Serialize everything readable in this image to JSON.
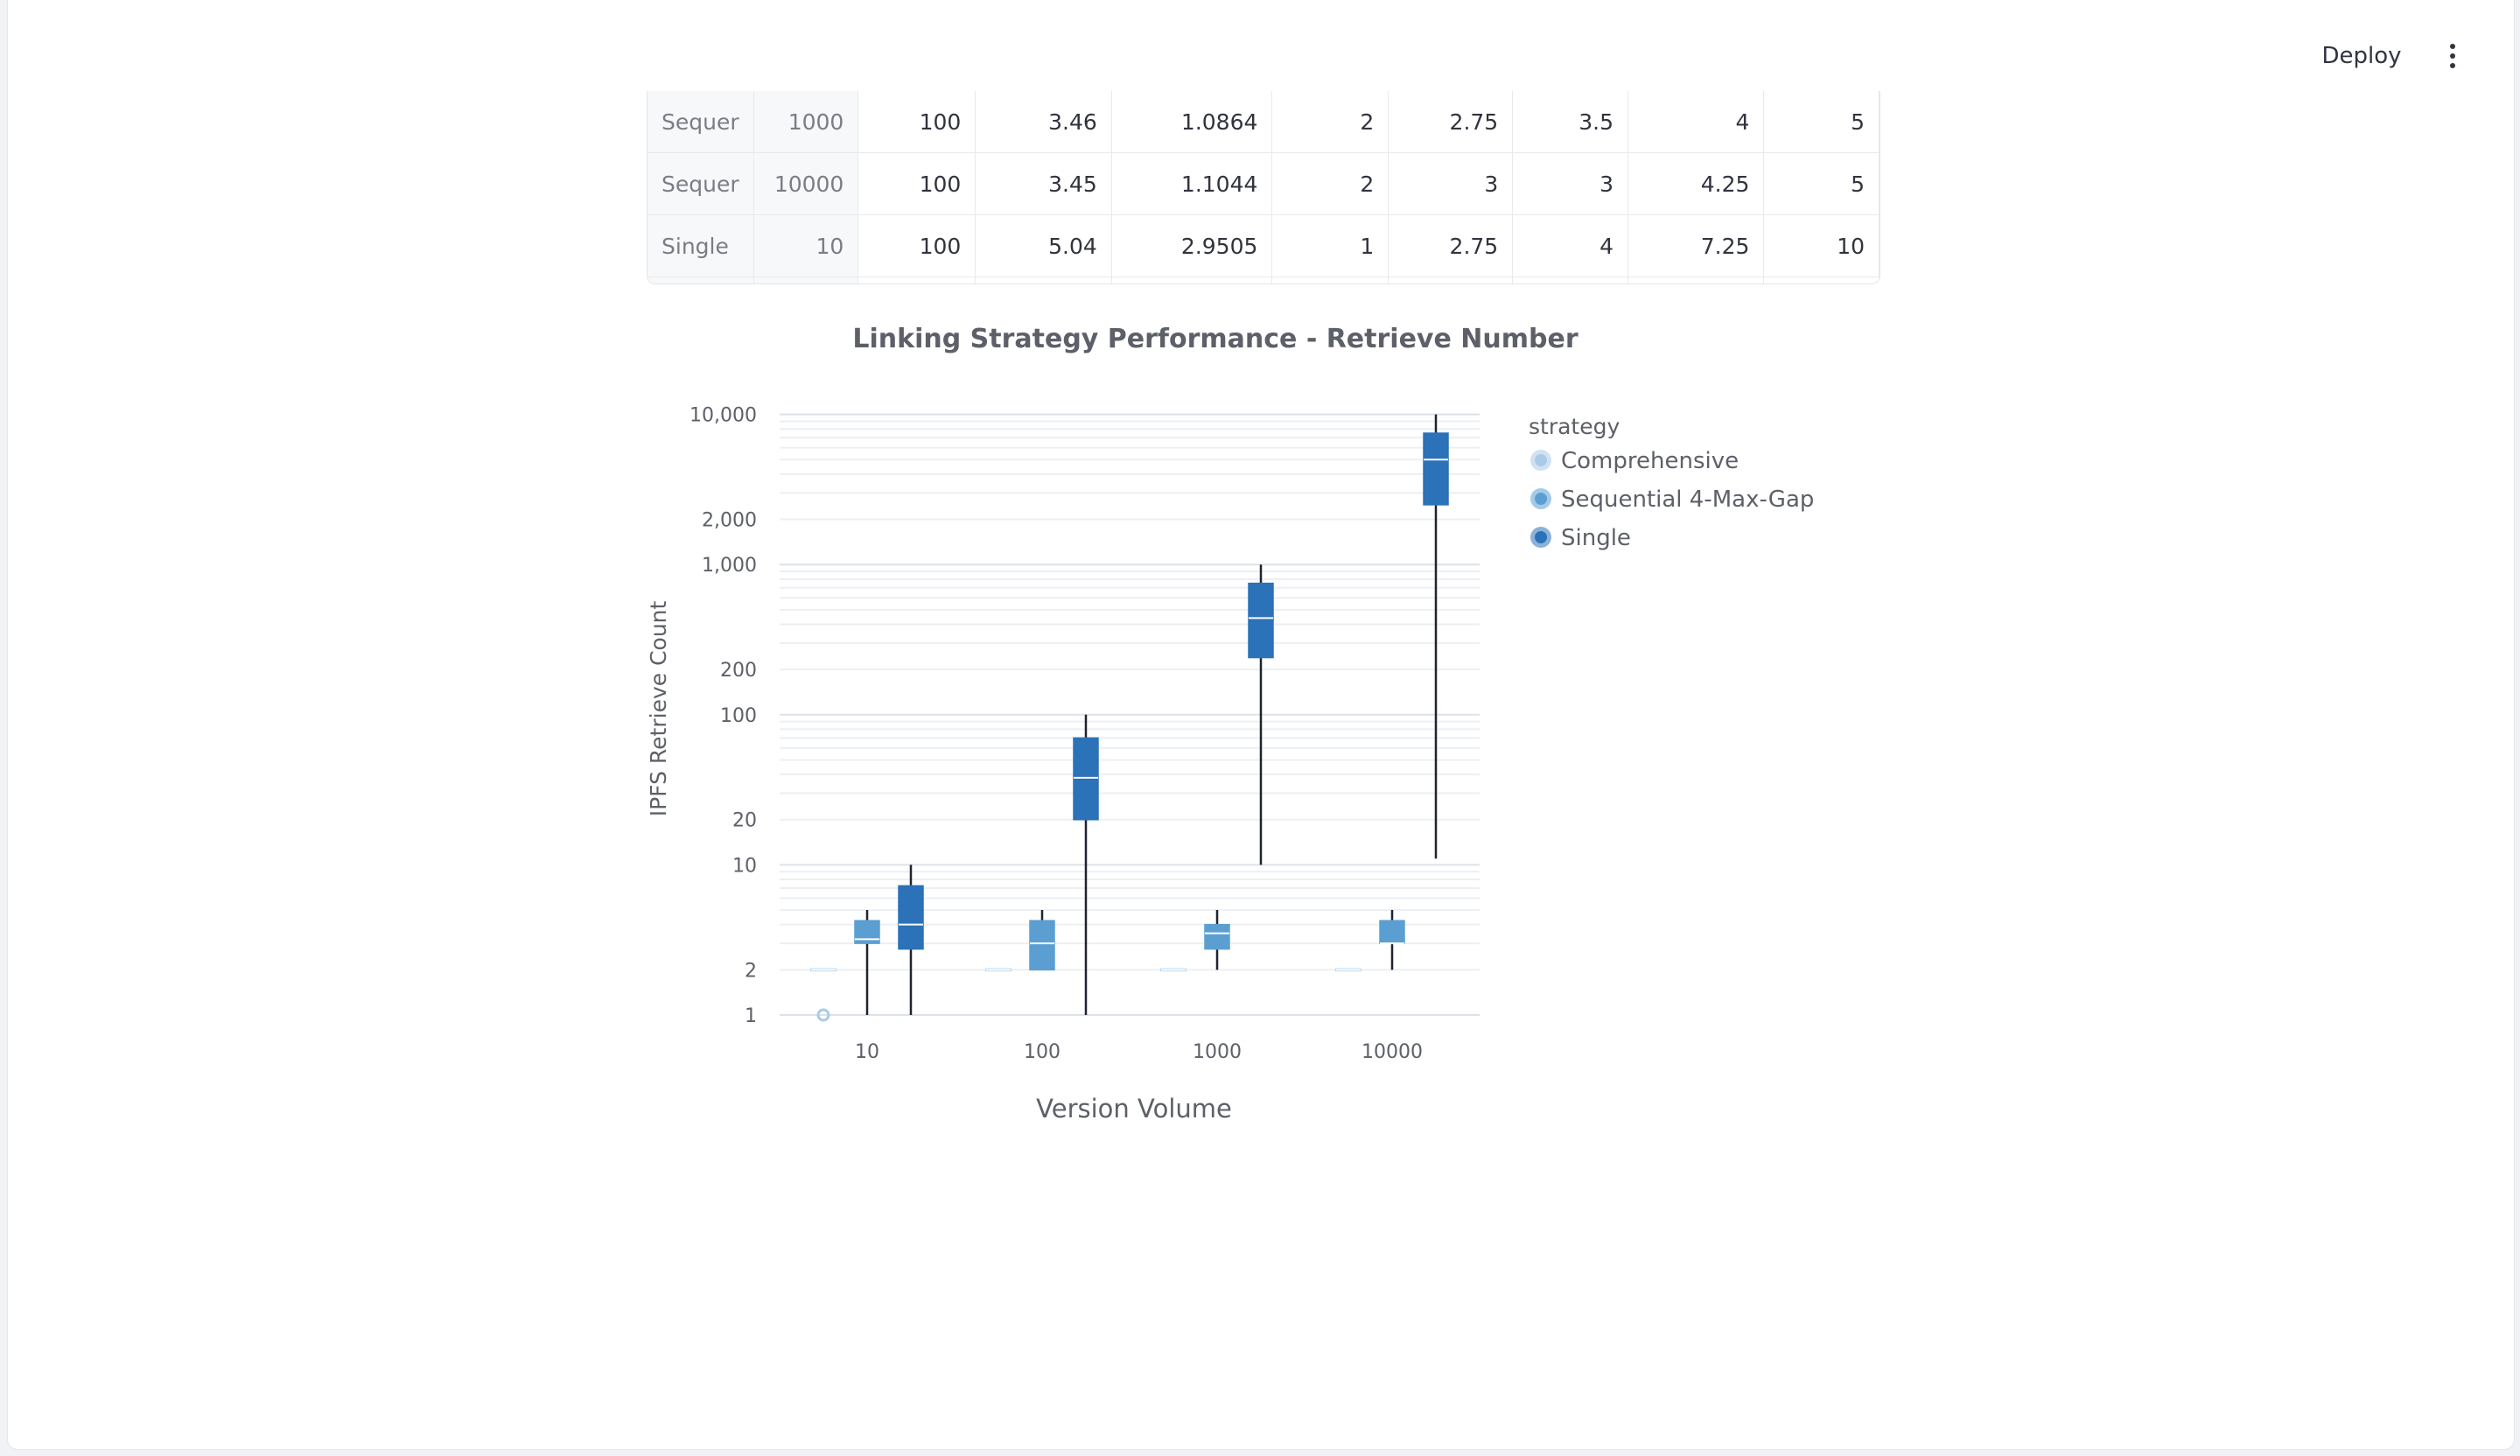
{
  "header": {
    "deploy_label": "Deploy",
    "menu_icon": "kebab-menu-icon"
  },
  "table": {
    "rows": [
      {
        "strategy": "Sequer",
        "version_volume": "1000",
        "count": "100",
        "mean": "3.46",
        "std": "1.0864",
        "min": "2",
        "q1": "2.75",
        "median": "3.5",
        "q3": "4",
        "max": "5"
      },
      {
        "strategy": "Sequer",
        "version_volume": "10000",
        "count": "100",
        "mean": "3.45",
        "std": "1.1044",
        "min": "2",
        "q1": "3",
        "median": "3",
        "q3": "4.25",
        "max": "5"
      },
      {
        "strategy": "Single",
        "version_volume": "10",
        "count": "100",
        "mean": "5.04",
        "std": "2.9505",
        "min": "1",
        "q1": "2.75",
        "median": "4",
        "q3": "7.25",
        "max": "10"
      }
    ]
  },
  "chart_data": {
    "type": "box",
    "title": "Linking Strategy Performance - Retrieve Number",
    "xlabel": "Version Volume",
    "ylabel": "IPFS Retrieve Count",
    "yscale": "log",
    "ylim": [
      1,
      12000
    ],
    "yticks": [
      1,
      2,
      10,
      20,
      100,
      200,
      1000,
      2000,
      10000
    ],
    "ytick_labels": [
      "1",
      "2",
      "10",
      "20",
      "100",
      "200",
      "1,000",
      "2,000",
      "10,000"
    ],
    "categories": [
      "10",
      "100",
      "1000",
      "10000"
    ],
    "legend_title": "strategy",
    "legend_position": "right",
    "series": [
      {
        "name": "Comprehensive",
        "color": "#a9cbe8",
        "boxes": [
          {
            "min": 2,
            "q1": 2,
            "median": 2,
            "q3": 2,
            "max": 2,
            "outliers": [
              1
            ]
          },
          {
            "min": 2,
            "q1": 2,
            "median": 2,
            "q3": 2,
            "max": 2,
            "outliers": []
          },
          {
            "min": 2,
            "q1": 2,
            "median": 2,
            "q3": 2,
            "max": 2,
            "outliers": []
          },
          {
            "min": 2,
            "q1": 2,
            "median": 2,
            "q3": 2,
            "max": 2,
            "outliers": []
          }
        ]
      },
      {
        "name": "Sequential 4-Max-Gap",
        "color": "#5b9fd2",
        "boxes": [
          {
            "min": 1,
            "q1": 3,
            "median": 3.2,
            "q3": 4.25,
            "max": 5,
            "outliers": []
          },
          {
            "min": 2,
            "q1": 2,
            "median": 3,
            "q3": 4.25,
            "max": 5,
            "outliers": []
          },
          {
            "min": 2,
            "q1": 2.75,
            "median": 3.5,
            "q3": 4,
            "max": 5,
            "outliers": []
          },
          {
            "min": 2,
            "q1": 3,
            "median": 3,
            "q3": 4.25,
            "max": 5,
            "outliers": []
          }
        ]
      },
      {
        "name": "Single",
        "color": "#2b72b8",
        "boxes": [
          {
            "min": 1,
            "q1": 2.75,
            "median": 4,
            "q3": 7.25,
            "max": 10,
            "outliers": []
          },
          {
            "min": 1,
            "q1": 20,
            "median": 38,
            "q3": 70,
            "max": 100,
            "outliers": []
          },
          {
            "min": 10,
            "q1": 240,
            "median": 440,
            "q3": 750,
            "max": 1000,
            "outliers": []
          },
          {
            "min": 11,
            "q1": 2500,
            "median": 5000,
            "q3": 7500,
            "max": 10000,
            "outliers": []
          }
        ]
      }
    ]
  }
}
